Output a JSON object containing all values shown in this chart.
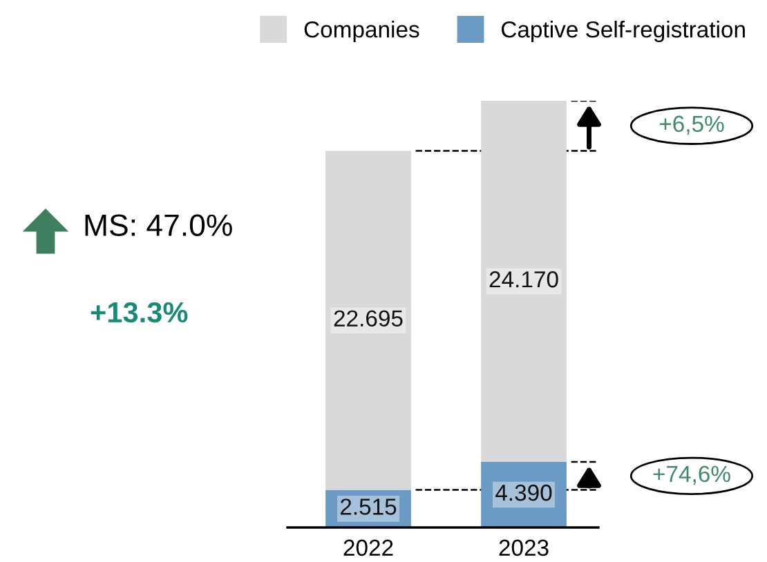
{
  "chart_data": {
    "type": "bar",
    "stacked": true,
    "categories": [
      "2022",
      "2023"
    ],
    "series": [
      {
        "name": "Captive Self-registration",
        "color": "#6b9ac4",
        "values": [
          2.515,
          4.39
        ],
        "value_labels": [
          "2.515",
          "4.390"
        ]
      },
      {
        "name": "Companies",
        "color": "#d9d9d9",
        "values": [
          22.695,
          24.17
        ],
        "value_labels": [
          "22.695",
          "24.170"
        ]
      }
    ],
    "annotations": [
      "MS: 47.0%",
      "+13.3%",
      "+6,5%",
      "+74,6%"
    ],
    "ref_lines": [
      {
        "axis": "y",
        "value": 25.21,
        "color": "#000000",
        "line_style": "dashed"
      },
      {
        "axis": "y",
        "value": 28.56,
        "color": "#000000",
        "line_style": "dashed"
      },
      {
        "axis": "y",
        "value": 2.515,
        "color": "#000000",
        "line_style": "dashed"
      },
      {
        "axis": "y",
        "value": 4.39,
        "color": "#000000",
        "line_style": "dashed"
      }
    ],
    "legend": "top",
    "grid": false,
    "tick_labels": "x"
  }
}
